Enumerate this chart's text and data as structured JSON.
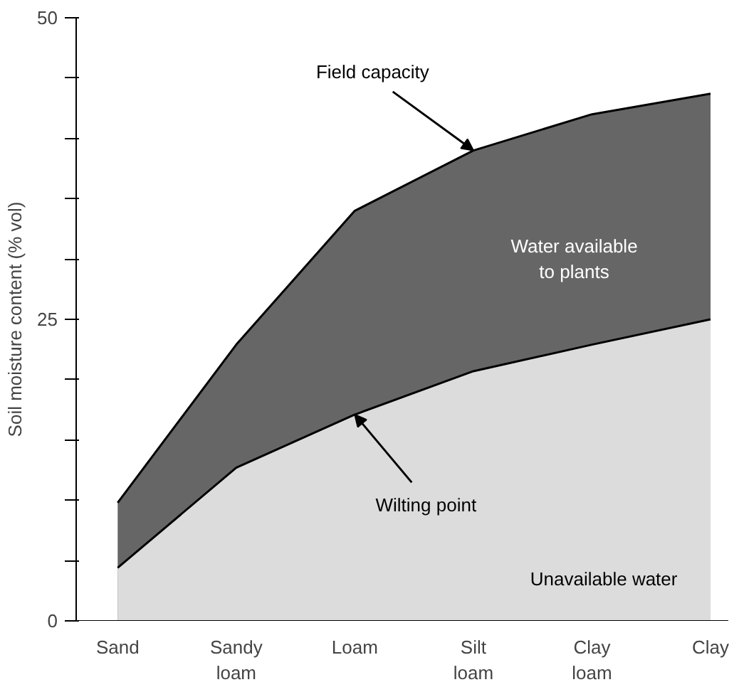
{
  "chart_data": {
    "type": "area",
    "ylabel": "Soil moisture content (% vol)",
    "categories": [
      "Sand",
      "Sandy\nloam",
      "Loam",
      "Silt\nloam",
      "Clay\nloam",
      "Clay"
    ],
    "ylim": [
      0,
      50
    ],
    "yticks": [
      0,
      {
        "value": 5,
        "label": null
      },
      {
        "value": 10,
        "label": null
      },
      {
        "value": 15,
        "label": null
      },
      {
        "value": 20,
        "label": null
      },
      25,
      {
        "value": 30,
        "label": null
      },
      {
        "value": 35,
        "label": null
      },
      {
        "value": 40,
        "label": null
      },
      {
        "value": 45,
        "label": null
      },
      50
    ],
    "series": [
      {
        "color": "#666666",
        "values": [
          9.8,
          22.9,
          34,
          39,
          42,
          43.7
        ]
      },
      {
        "color": "#dcdcdc",
        "values": [
          4.4,
          12.7,
          17.1,
          20.7,
          22.9,
          25
        ]
      }
    ],
    "annotations": [
      {
        "text": "Field capacity",
        "x": "Silt\nloam",
        "y": 39
      },
      {
        "text": "Wilting point",
        "x": "Loam",
        "y": 17.1
      },
      "Water available\nto plants",
      "Unavailable water"
    ],
    "grid": false
  }
}
